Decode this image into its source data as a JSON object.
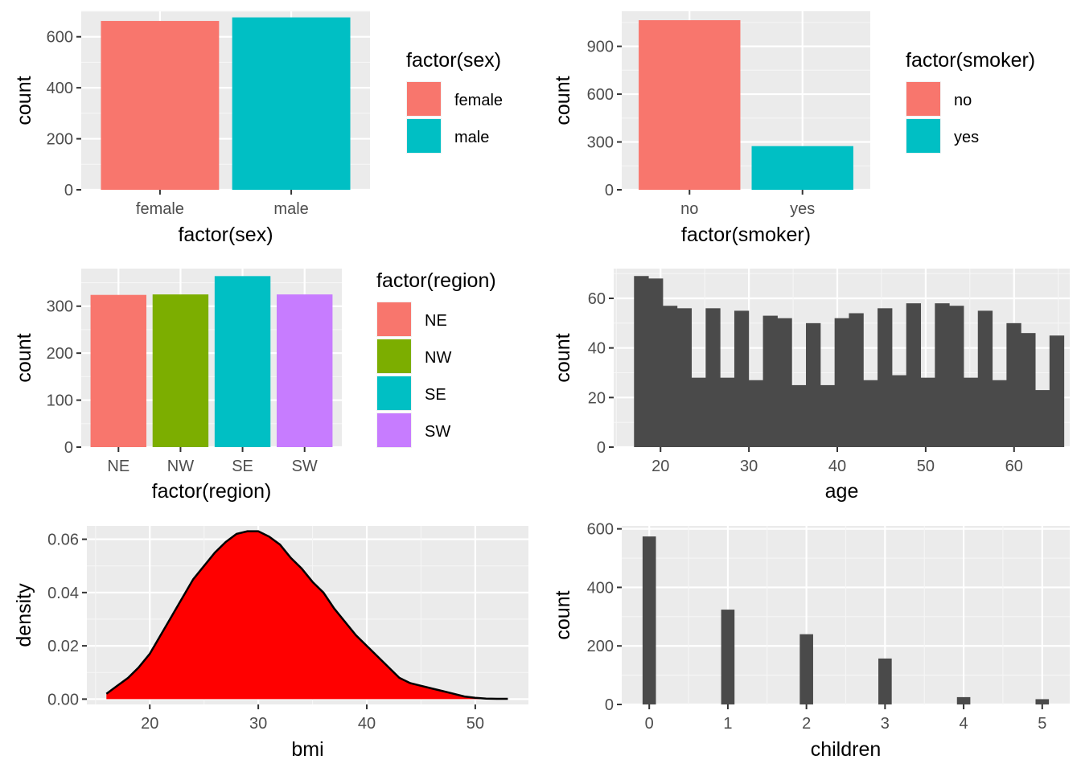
{
  "colors": {
    "female": "#F8766D",
    "male": "#00BFC4",
    "no": "#F8766D",
    "yes": "#00BFC4",
    "NE": "#F8766D",
    "NW": "#7CAE00",
    "SE": "#00BFC4",
    "SW": "#C77CFF",
    "histogram": "#4a4a4a",
    "density_fill": "#ff0000",
    "density_line": "#000000"
  },
  "chart_data": [
    {
      "id": "sex",
      "type": "bar",
      "categories": [
        "female",
        "male"
      ],
      "values": [
        662,
        676
      ],
      "xlabel": "factor(sex)",
      "ylabel": "count",
      "ylim": [
        0,
        700
      ],
      "yticks": [
        0,
        200,
        400,
        600
      ],
      "grid": true,
      "legend": {
        "title": "factor(sex)",
        "placement": "right",
        "items": [
          "female",
          "male"
        ]
      }
    },
    {
      "id": "smoker",
      "type": "bar",
      "categories": [
        "no",
        "yes"
      ],
      "values": [
        1064,
        274
      ],
      "xlabel": "factor(smoker)",
      "ylabel": "count",
      "ylim": [
        0,
        1120
      ],
      "yticks": [
        0,
        300,
        600,
        900
      ],
      "grid": true,
      "legend": {
        "title": "factor(smoker)",
        "placement": "right",
        "items": [
          "no",
          "yes"
        ]
      }
    },
    {
      "id": "region",
      "type": "bar",
      "categories": [
        "NE",
        "NW",
        "SE",
        "SW"
      ],
      "values": [
        324,
        325,
        364,
        325
      ],
      "xlabel": "factor(region)",
      "ylabel": "count",
      "ylim": [
        0,
        380
      ],
      "yticks": [
        0,
        100,
        200,
        300
      ],
      "grid": true,
      "legend": {
        "title": "factor(region)",
        "placement": "right",
        "items": [
          "NE",
          "NW",
          "SE",
          "SW"
        ]
      }
    },
    {
      "id": "age",
      "type": "bar",
      "subtype": "histogram",
      "bin_start": 17,
      "bin_width": 1.621,
      "values": [
        69,
        68,
        57,
        56,
        28,
        56,
        28,
        55,
        27,
        53,
        52,
        25,
        50,
        25,
        52,
        54,
        27,
        56,
        29,
        58,
        28,
        58,
        57,
        28,
        55,
        27,
        50,
        46,
        23,
        45
      ],
      "xlabel": "age",
      "ylabel": "count",
      "xlim": [
        14.7,
        66.3
      ],
      "ylim": [
        0,
        72
      ],
      "xticks": [
        20,
        30,
        40,
        50,
        60
      ],
      "yticks": [
        0,
        20,
        40,
        60
      ],
      "grid": true
    },
    {
      "id": "bmi",
      "type": "area",
      "subtype": "density",
      "x": [
        16,
        17,
        18,
        19,
        20,
        21,
        22,
        23,
        24,
        25,
        26,
        27,
        28,
        29,
        30,
        31,
        32,
        33,
        34,
        35,
        36,
        37,
        38,
        39,
        40,
        41,
        42,
        43,
        44,
        45,
        46,
        47,
        48,
        49,
        50,
        51,
        52,
        53
      ],
      "y": [
        0.002,
        0.005,
        0.008,
        0.012,
        0.017,
        0.024,
        0.031,
        0.038,
        0.045,
        0.05,
        0.055,
        0.059,
        0.062,
        0.063,
        0.063,
        0.061,
        0.058,
        0.053,
        0.049,
        0.044,
        0.04,
        0.034,
        0.029,
        0.024,
        0.02,
        0.016,
        0.012,
        0.008,
        0.006,
        0.005,
        0.004,
        0.003,
        0.002,
        0.001,
        0.0005,
        0.0002,
        0.0001,
        0.0001
      ],
      "xlabel": "bmi",
      "ylabel": "density",
      "xlim": [
        14.2,
        54.9
      ],
      "ylim": [
        -0.002,
        0.065
      ],
      "xticks": [
        20,
        30,
        40,
        50
      ],
      "yticks": [
        0,
        0.02,
        0.04,
        0.06
      ],
      "ytick_labels": [
        "0.00",
        "0.02",
        "0.04",
        "0.06"
      ],
      "grid": true
    },
    {
      "id": "children",
      "type": "bar",
      "subtype": "histogram",
      "x": [
        0,
        1,
        2,
        3,
        4,
        5
      ],
      "values": [
        574,
        324,
        240,
        157,
        25,
        18
      ],
      "xlabel": "children",
      "ylabel": "count",
      "xlim": [
        -0.35,
        5.35
      ],
      "ylim": [
        0,
        610
      ],
      "xticks": [
        0,
        1,
        2,
        3,
        4,
        5
      ],
      "yticks": [
        0,
        200,
        400,
        600
      ],
      "grid": true
    }
  ]
}
